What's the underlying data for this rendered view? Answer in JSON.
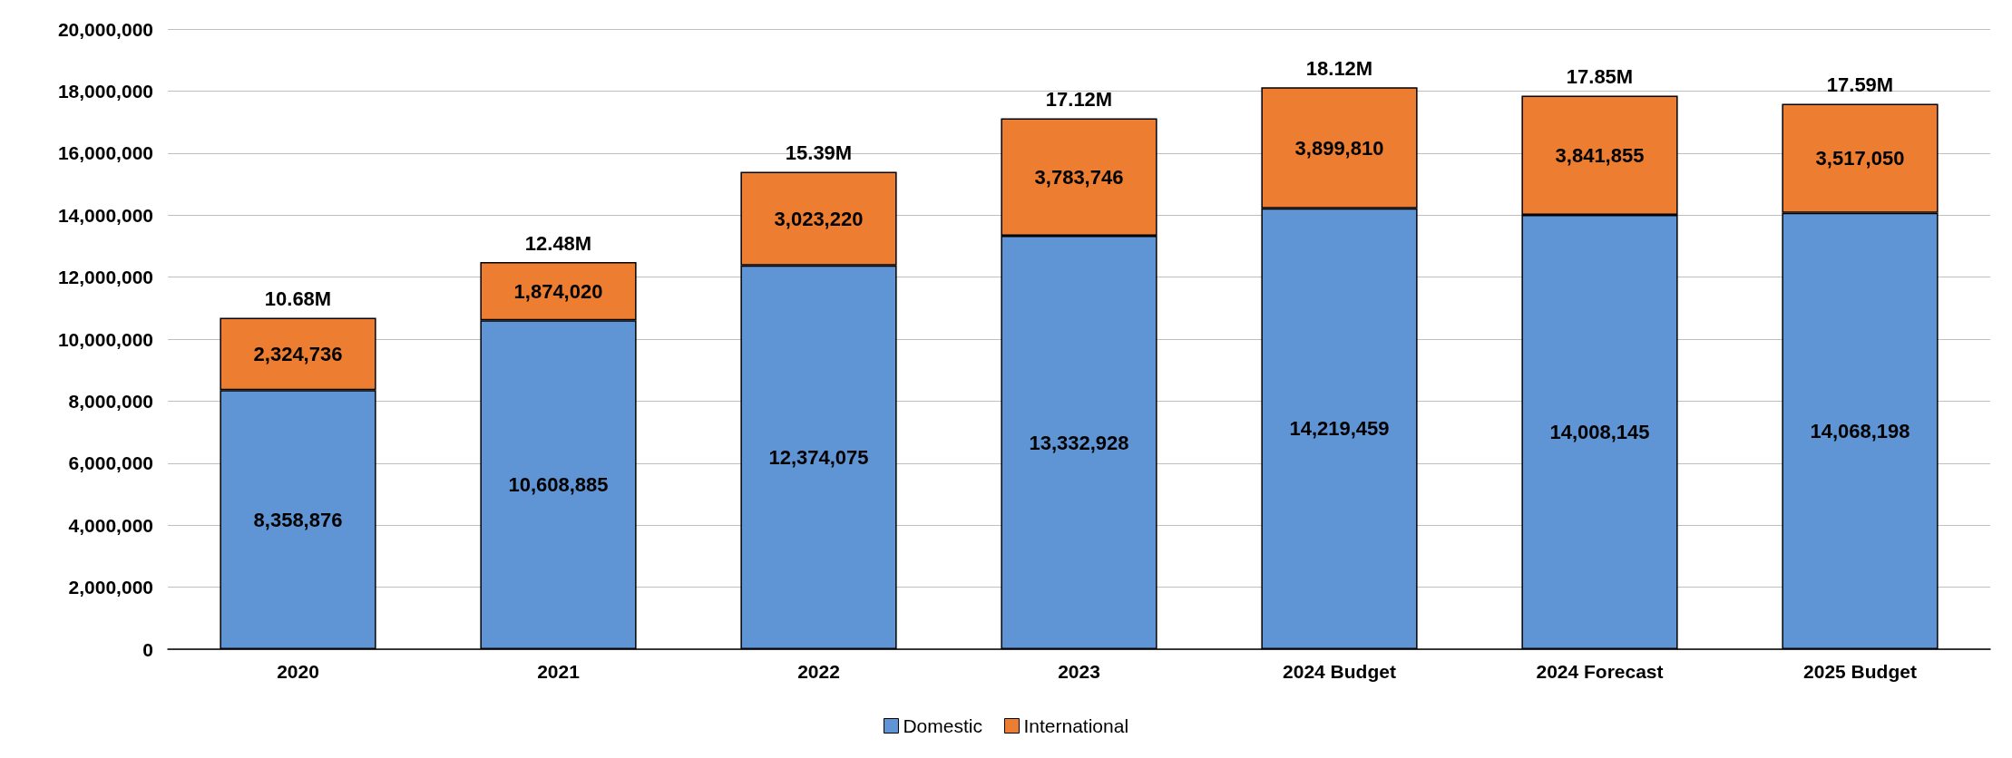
{
  "chart_data": {
    "type": "bar",
    "stacked": true,
    "categories": [
      "2020",
      "2021",
      "2022",
      "2023",
      "2024 Budget",
      "2024 Forecast",
      "2025 Budget"
    ],
    "series": [
      {
        "name": "Domestic",
        "color": "#5f95d5",
        "values": [
          8358876,
          10608885,
          12374075,
          13332928,
          14219459,
          14008145,
          14068198
        ],
        "value_labels": [
          "8,358,876",
          "10,608,885",
          "12,374,075",
          "13,332,928",
          "14,219,459",
          "14,008,145",
          "14,068,198"
        ]
      },
      {
        "name": "International",
        "color": "#ed7d31",
        "values": [
          2324736,
          1874020,
          3023220,
          3783746,
          3899810,
          3841855,
          3517050
        ],
        "value_labels": [
          "2,324,736",
          "1,874,020",
          "3,023,220",
          "3,783,746",
          "3,899,810",
          "3,841,855",
          "3,517,050"
        ]
      }
    ],
    "totals": [
      "10.68M",
      "12.48M",
      "15.39M",
      "17.12M",
      "18.12M",
      "17.85M",
      "17.59M"
    ],
    "ylim": [
      0,
      20000000
    ],
    "yticks": [
      {
        "value": 0,
        "label": "0"
      },
      {
        "value": 2000000,
        "label": "2,000,000"
      },
      {
        "value": 4000000,
        "label": "4,000,000"
      },
      {
        "value": 6000000,
        "label": "6,000,000"
      },
      {
        "value": 8000000,
        "label": "8,000,000"
      },
      {
        "value": 10000000,
        "label": "10,000,000"
      },
      {
        "value": 12000000,
        "label": "12,000,000"
      },
      {
        "value": 14000000,
        "label": "14,000,000"
      },
      {
        "value": 16000000,
        "label": "16,000,000"
      },
      {
        "value": 18000000,
        "label": "18,000,000"
      },
      {
        "value": 20000000,
        "label": "20,000,000"
      }
    ],
    "grid": "y",
    "legend": "bottom"
  }
}
